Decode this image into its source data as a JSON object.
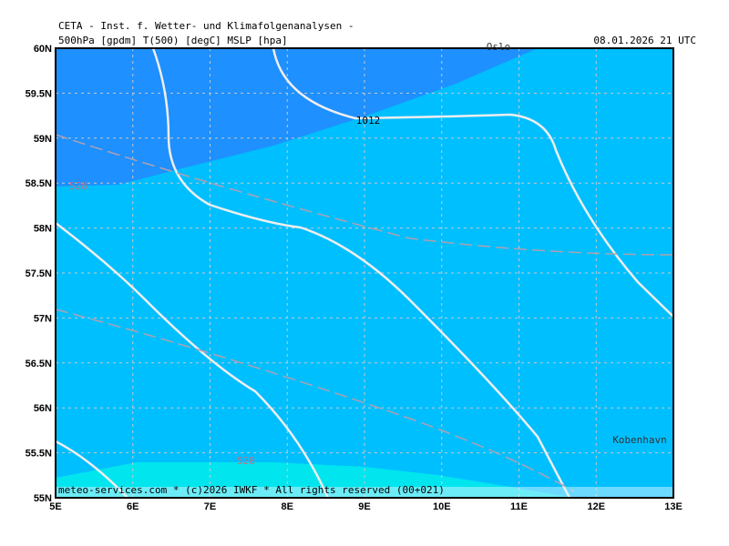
{
  "header": {
    "line1": "CETA - Inst. f. Wetter- und Klimafolgenanalysen -",
    "line2_left": "500hPa [gpdm] T(500) [degC] MSLP [hpa]",
    "line2_right": "08.01.2026 21 UTC"
  },
  "map": {
    "lat_ticks": [
      {
        "value": 60,
        "label": "60N"
      },
      {
        "value": 59.5,
        "label": "59.5N"
      },
      {
        "value": 59,
        "label": "59N"
      },
      {
        "value": 58.5,
        "label": "58.5N"
      },
      {
        "value": 58,
        "label": "58N"
      },
      {
        "value": 57.5,
        "label": "57.5N"
      },
      {
        "value": 57,
        "label": "57N"
      },
      {
        "value": 56.5,
        "label": "56.5N"
      },
      {
        "value": 56,
        "label": "56N"
      },
      {
        "value": 55.5,
        "label": "55.5N"
      },
      {
        "value": 55,
        "label": "55N"
      }
    ],
    "lon_ticks": [
      {
        "value": 5,
        "label": "5E"
      },
      {
        "value": 6,
        "label": "6E"
      },
      {
        "value": 7,
        "label": "7E"
      },
      {
        "value": 8,
        "label": "8E"
      },
      {
        "value": 9,
        "label": "9E"
      },
      {
        "value": 10,
        "label": "10E"
      },
      {
        "value": 11,
        "label": "11E"
      },
      {
        "value": 12,
        "label": "12E"
      },
      {
        "value": 13,
        "label": "13E"
      }
    ],
    "contour_labels": [
      "1012",
      "528",
      "528"
    ],
    "places": [
      "Oslo",
      "Kobenhavn"
    ]
  },
  "footer": "meteo-services.com * (c)2026 IWKF * All rights reserved (00+021)"
}
